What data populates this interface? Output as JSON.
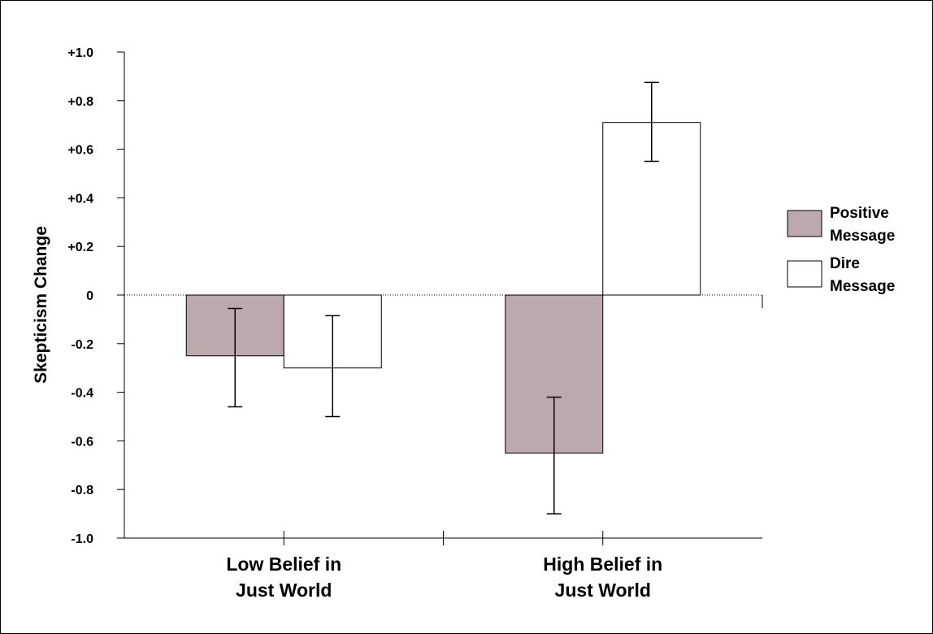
{
  "chart_data": {
    "type": "bar",
    "title": "",
    "xlabel": "",
    "ylabel": "Skepticism Change",
    "ylim": [
      -1.0,
      1.0
    ],
    "yticks": [
      1.0,
      0.8,
      0.6,
      0.4,
      0.2,
      0,
      -0.2,
      -0.4,
      -0.6,
      -0.8,
      -1.0
    ],
    "ytick_labels": [
      "+1.0",
      "+0.8",
      "+0.6",
      "+0.4",
      "+0.2",
      "0",
      "-0.2",
      "-0.4",
      "-0.6",
      "-0.8",
      "-1.0"
    ],
    "categories": [
      [
        "Low Belief in",
        "Just World"
      ],
      [
        "High Belief in",
        "Just World"
      ]
    ],
    "series": [
      {
        "name": [
          "Positive",
          "Message"
        ],
        "values": [
          -0.25,
          -0.65
        ],
        "error_low": [
          -0.46,
          -0.9
        ],
        "error_high": [
          -0.055,
          -0.42
        ],
        "color": "#bba9ae"
      },
      {
        "name": [
          "Dire",
          "Message"
        ],
        "values": [
          -0.3,
          0.71
        ],
        "error_low": [
          -0.5,
          0.55
        ],
        "error_high": [
          -0.085,
          0.875
        ],
        "color": "#ffffff"
      }
    ],
    "zero_line": "dotted",
    "grid": false,
    "legend_position": "right"
  }
}
